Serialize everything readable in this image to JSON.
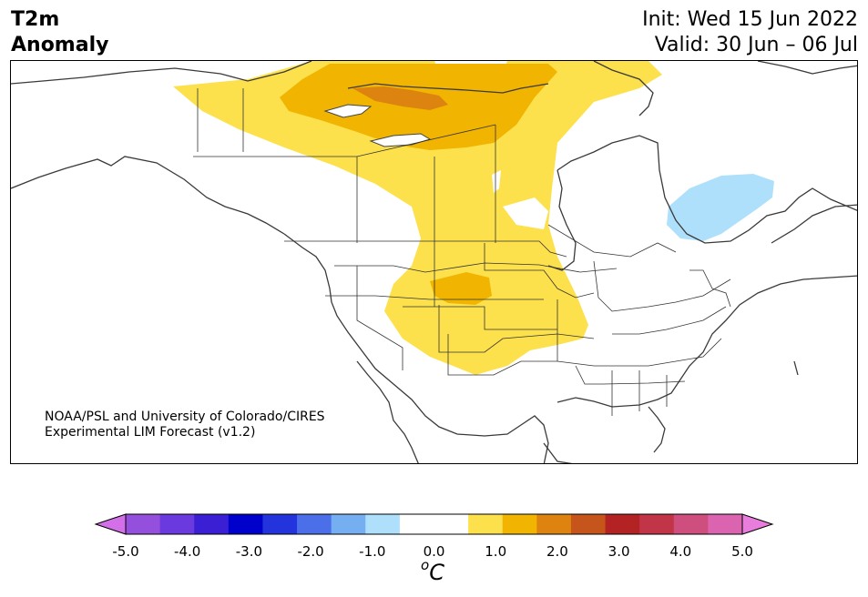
{
  "title": {
    "line1": "T2m",
    "line2": "Anomaly"
  },
  "header": {
    "init": "Init: Wed 15 Jun 2022",
    "valid": "Valid: 30 Jun – 06 Jul"
  },
  "credit": {
    "line1": "NOAA/PSL and University of Colorado/CIRES",
    "line2": "Experimental LIM Forecast (v1.2)"
  },
  "colorbar": {
    "unit_base": "C",
    "unit_sup": "o",
    "tick_labels": [
      "-5.0",
      "-4.0",
      "-3.0",
      "-2.0",
      "-1.0",
      "0.0",
      "1.0",
      "2.0",
      "3.0",
      "4.0",
      "5.0"
    ],
    "colors": [
      "#d46fea",
      "#9450dc",
      "#6a3adf",
      "#3a1fd4",
      "#0000cc",
      "#2434dc",
      "#4a6fe8",
      "#76aef2",
      "#aee0fb",
      "#ffffff",
      "#ffffff",
      "#fce14c",
      "#f1b400",
      "#dd8410",
      "#c5551a",
      "#b42324",
      "#c23447",
      "#ce4f7e",
      "#da64b0",
      "#e87ddb"
    ]
  },
  "anomaly_regions": {
    "warm_1_to_2": "Canadian Prairies / Northwest Territories, northern and central Plains",
    "warm_2_to_3": "Nunavut west of Hudson Bay, Wyoming–Nebraska",
    "cool_minus1_to_minus0_5": "Northern Quebec / Ontario"
  }
}
